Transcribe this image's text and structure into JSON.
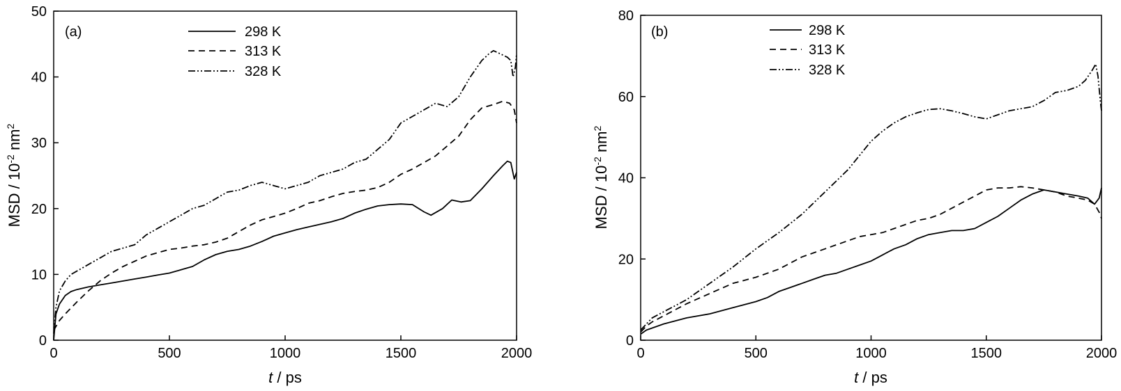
{
  "chart_data": [
    {
      "type": "line",
      "panel_label": "(a)",
      "xlabel_italic": "t",
      "xlabel_rest": " / ps",
      "ylabel": "MSD / 10",
      "ylabel_exp": "-2",
      "ylabel_unit": " nm",
      "ylabel_unit_exp": "2",
      "xlim": [
        0,
        2000
      ],
      "ylim": [
        0,
        50
      ],
      "xticks": [
        0,
        500,
        1000,
        1500,
        2000
      ],
      "yticks": [
        0,
        10,
        20,
        30,
        40,
        50
      ],
      "legend_position": "top-center",
      "series": [
        {
          "name": "298 K",
          "dash": "solid",
          "x": [
            0,
            10,
            25,
            50,
            75,
            100,
            150,
            200,
            250,
            300,
            350,
            400,
            450,
            500,
            550,
            600,
            650,
            700,
            750,
            800,
            850,
            900,
            950,
            1000,
            1050,
            1100,
            1150,
            1200,
            1250,
            1300,
            1350,
            1400,
            1450,
            1500,
            1550,
            1600,
            1630,
            1680,
            1720,
            1760,
            1800,
            1850,
            1900,
            1940,
            1960,
            1975,
            1990,
            2000
          ],
          "y": [
            0,
            4.0,
            5.5,
            6.8,
            7.4,
            7.7,
            8.1,
            8.4,
            8.7,
            9.0,
            9.3,
            9.6,
            9.9,
            10.2,
            10.7,
            11.2,
            12.2,
            13.0,
            13.5,
            13.8,
            14.3,
            15.0,
            15.8,
            16.3,
            16.8,
            17.2,
            17.6,
            18.0,
            18.5,
            19.3,
            19.9,
            20.4,
            20.6,
            20.7,
            20.6,
            19.5,
            19.0,
            20.0,
            21.3,
            21.0,
            21.2,
            23.0,
            25.0,
            26.5,
            27.2,
            27.0,
            24.5,
            25.5
          ]
        },
        {
          "name": "313 K",
          "dash": "dashed",
          "x": [
            0,
            25,
            50,
            100,
            150,
            200,
            250,
            300,
            350,
            400,
            450,
            500,
            550,
            600,
            650,
            700,
            750,
            800,
            850,
            900,
            950,
            1000,
            1050,
            1100,
            1150,
            1200,
            1250,
            1300,
            1350,
            1400,
            1450,
            1500,
            1550,
            1600,
            1650,
            1700,
            1750,
            1800,
            1850,
            1900,
            1940,
            1970,
            1990,
            2000
          ],
          "y": [
            1.5,
            3.0,
            4.0,
            5.8,
            7.5,
            9.0,
            10.2,
            11.2,
            12.0,
            12.8,
            13.3,
            13.8,
            14.0,
            14.3,
            14.5,
            14.9,
            15.5,
            16.5,
            17.5,
            18.3,
            18.8,
            19.3,
            20.0,
            20.8,
            21.2,
            21.8,
            22.3,
            22.6,
            22.8,
            23.2,
            24.0,
            25.2,
            26.0,
            27.0,
            28.0,
            29.5,
            31.0,
            33.5,
            35.3,
            35.8,
            36.3,
            36.0,
            35.0,
            33.0
          ]
        },
        {
          "name": "328 K",
          "dash": "dashdotdot",
          "x": [
            0,
            10,
            25,
            50,
            75,
            100,
            150,
            200,
            250,
            300,
            350,
            400,
            450,
            500,
            550,
            600,
            650,
            700,
            750,
            800,
            850,
            900,
            950,
            1000,
            1050,
            1100,
            1150,
            1200,
            1250,
            1300,
            1350,
            1400,
            1450,
            1500,
            1550,
            1600,
            1650,
            1700,
            1750,
            1800,
            1850,
            1880,
            1900,
            1930,
            1960,
            1975,
            1985,
            1995,
            2000
          ],
          "y": [
            1.0,
            5.0,
            7.5,
            9.0,
            10.0,
            10.5,
            11.5,
            12.5,
            13.5,
            14.0,
            14.5,
            16.0,
            17.0,
            18.0,
            19.0,
            20.0,
            20.5,
            21.5,
            22.5,
            22.8,
            23.5,
            24.0,
            23.5,
            23.0,
            23.5,
            24.0,
            25.0,
            25.5,
            26.0,
            27.0,
            27.5,
            29.0,
            30.5,
            33.0,
            34.0,
            35.0,
            36.0,
            35.5,
            37.0,
            40.0,
            42.5,
            43.5,
            44.0,
            43.5,
            43.0,
            42.5,
            40.0,
            41.5,
            43.5
          ]
        }
      ]
    },
    {
      "type": "line",
      "panel_label": "(b)",
      "xlabel_italic": "t",
      "xlabel_rest": " / ps",
      "ylabel": "MSD /  10",
      "ylabel_exp": "-2",
      "ylabel_unit": " nm",
      "ylabel_unit_exp": "2",
      "xlim": [
        0,
        2000
      ],
      "ylim": [
        0,
        80
      ],
      "xticks": [
        0,
        500,
        1000,
        1500,
        2000
      ],
      "yticks": [
        0,
        20,
        40,
        60,
        80
      ],
      "legend_position": "top-center",
      "series": [
        {
          "name": "298 K",
          "dash": "solid",
          "x": [
            0,
            25,
            50,
            100,
            200,
            300,
            400,
            500,
            550,
            600,
            650,
            700,
            750,
            800,
            850,
            900,
            950,
            1000,
            1050,
            1100,
            1150,
            1200,
            1250,
            1300,
            1350,
            1400,
            1450,
            1500,
            1550,
            1600,
            1650,
            1700,
            1750,
            1800,
            1850,
            1900,
            1940,
            1970,
            1990,
            2000
          ],
          "y": [
            1.5,
            2.5,
            3.0,
            4.0,
            5.5,
            6.5,
            8.0,
            9.5,
            10.5,
            12.0,
            13.0,
            14.0,
            15.0,
            16.0,
            16.5,
            17.5,
            18.5,
            19.5,
            21.0,
            22.5,
            23.5,
            25.0,
            26.0,
            26.5,
            27.0,
            27.0,
            27.5,
            29.0,
            30.5,
            32.5,
            34.5,
            36.0,
            37.0,
            36.5,
            36.0,
            35.5,
            35.0,
            33.5,
            35.0,
            37.5
          ]
        },
        {
          "name": "313 K",
          "dash": "dashed",
          "x": [
            0,
            25,
            50,
            100,
            150,
            200,
            300,
            400,
            500,
            550,
            600,
            650,
            700,
            750,
            800,
            850,
            900,
            950,
            1000,
            1050,
            1100,
            1150,
            1200,
            1250,
            1300,
            1350,
            1400,
            1450,
            1500,
            1550,
            1600,
            1650,
            1700,
            1750,
            1800,
            1850,
            1900,
            1940,
            1970,
            1990,
            2000
          ],
          "y": [
            2.0,
            3.5,
            4.5,
            6.0,
            7.5,
            9.0,
            11.5,
            14.0,
            15.5,
            16.5,
            17.5,
            19.0,
            20.5,
            21.5,
            22.5,
            23.5,
            24.5,
            25.5,
            26.0,
            26.5,
            27.5,
            28.5,
            29.5,
            30.0,
            31.0,
            32.5,
            34.0,
            35.5,
            37.0,
            37.5,
            37.5,
            37.8,
            37.5,
            37.0,
            36.5,
            35.5,
            35.0,
            34.5,
            33.5,
            31.5,
            30.0
          ]
        },
        {
          "name": "328 K",
          "dash": "dashdotdot",
          "x": [
            0,
            25,
            50,
            100,
            150,
            200,
            250,
            300,
            400,
            500,
            600,
            700,
            800,
            900,
            950,
            1000,
            1050,
            1100,
            1150,
            1200,
            1250,
            1300,
            1350,
            1400,
            1450,
            1500,
            1550,
            1600,
            1650,
            1700,
            1750,
            1800,
            1850,
            1900,
            1930,
            1960,
            1975,
            1985,
            1995,
            2000
          ],
          "y": [
            2.5,
            4.0,
            5.5,
            7.0,
            8.5,
            10.0,
            12.0,
            14.0,
            18.0,
            22.5,
            26.5,
            31.0,
            36.5,
            42.0,
            45.5,
            49.0,
            51.5,
            53.5,
            55.0,
            56.0,
            56.8,
            57.0,
            56.5,
            55.8,
            55.0,
            54.5,
            55.5,
            56.5,
            57.0,
            57.5,
            59.0,
            61.0,
            61.5,
            62.5,
            64.0,
            66.5,
            68.0,
            65.0,
            59.0,
            56.5
          ]
        }
      ]
    }
  ]
}
